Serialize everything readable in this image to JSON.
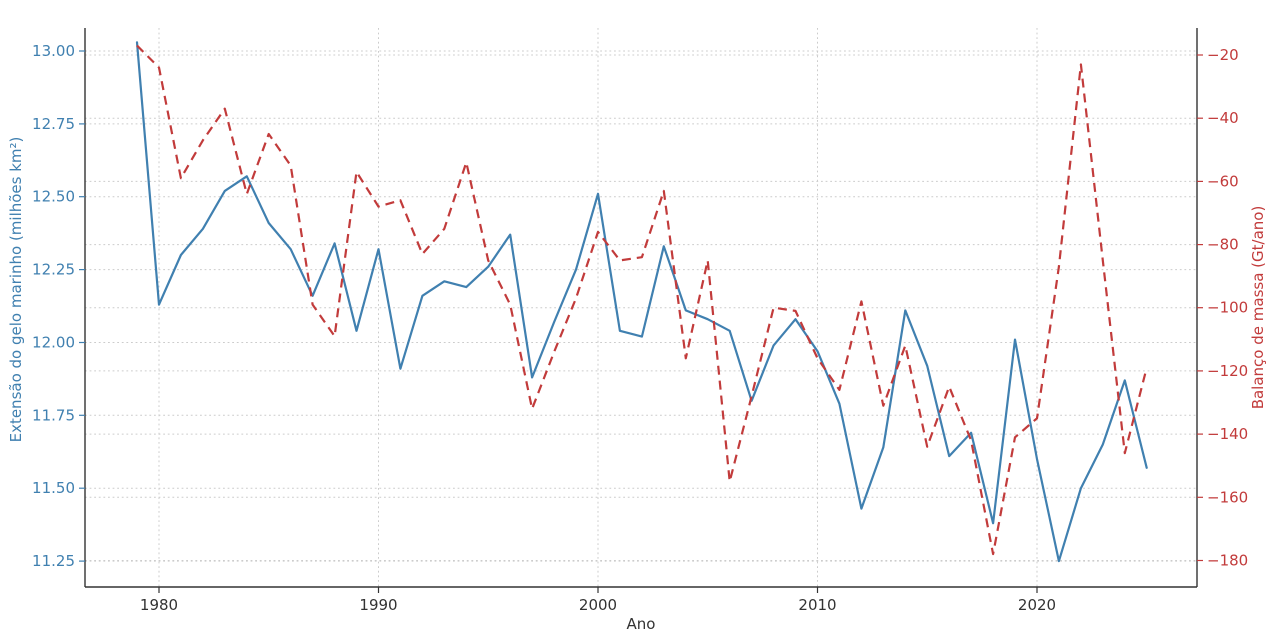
{
  "figure": {
    "background": "#ffffff",
    "grid_color": "#cccccc",
    "spine_color": "#333333",
    "tick_text_color_x": "#333333"
  },
  "chart_data": {
    "type": "line",
    "title": "",
    "xlabel": "Ano",
    "ylabel_left": "Extensão do gelo marinho (milhões km²)",
    "ylabel_right": "Balanço de massa (Gt/ano)",
    "grid": true,
    "legend": "none",
    "x_ticks": [
      1980,
      1990,
      2000,
      2010,
      2020
    ],
    "y_ticks_left": [
      13.0,
      12.75,
      12.5,
      12.25,
      12.0,
      11.75,
      11.5,
      11.25
    ],
    "y_ticks_right": [
      -20,
      -40,
      -60,
      -80,
      -100,
      -120,
      -140,
      -160,
      -180
    ],
    "xlim": [
      1976.63,
      2027.29
    ],
    "ylim_left": [
      11.161,
      13.079
    ],
    "ylim_right": [
      -188.4,
      -11.45
    ],
    "years": [
      1979,
      1980,
      1981,
      1982,
      1983,
      1984,
      1985,
      1986,
      1987,
      1988,
      1989,
      1990,
      1991,
      1992,
      1993,
      1994,
      1995,
      1996,
      1997,
      1998,
      1999,
      2000,
      2001,
      2002,
      2003,
      2004,
      2005,
      2006,
      2007,
      2008,
      2009,
      2010,
      2011,
      2012,
      2013,
      2014,
      2015,
      2016,
      2017,
      2018,
      2019,
      2020,
      2021,
      2022,
      2023,
      2024,
      2025
    ],
    "series": [
      {
        "name": "Extensão do gelo marinho",
        "axis": "left",
        "color": "#4080b0",
        "style": "solid",
        "values": [
          13.03,
          12.13,
          12.3,
          12.39,
          12.52,
          12.57,
          12.41,
          12.32,
          12.16,
          12.34,
          12.04,
          12.32,
          11.91,
          12.16,
          12.21,
          12.19,
          12.26,
          12.37,
          11.88,
          12.07,
          12.25,
          12.51,
          12.04,
          12.02,
          12.33,
          12.11,
          12.08,
          12.04,
          11.8,
          11.99,
          12.08,
          11.97,
          11.79,
          11.43,
          11.64,
          12.11,
          11.92,
          11.61,
          11.69,
          11.38,
          12.01,
          11.6,
          11.25,
          11.5,
          11.65,
          11.87,
          11.57
        ]
      },
      {
        "name": "Balanço de massa",
        "axis": "right",
        "color": "#c23b3b",
        "style": "dashed",
        "values": [
          -17,
          -24,
          -59,
          -47,
          -37,
          -64,
          -45,
          -55,
          -99,
          -109,
          -57,
          -68,
          -66,
          -83,
          -75,
          -54,
          -85,
          -99,
          -132,
          -114,
          -97,
          -76,
          -85,
          -84,
          -63,
          -116,
          -85,
          -155,
          -128,
          -100,
          -101,
          -116,
          -126,
          -98,
          -131,
          -112,
          -144,
          -125,
          -142,
          -178,
          -141,
          -135,
          -87,
          -23,
          -85,
          -146,
          -119
        ]
      }
    ]
  }
}
